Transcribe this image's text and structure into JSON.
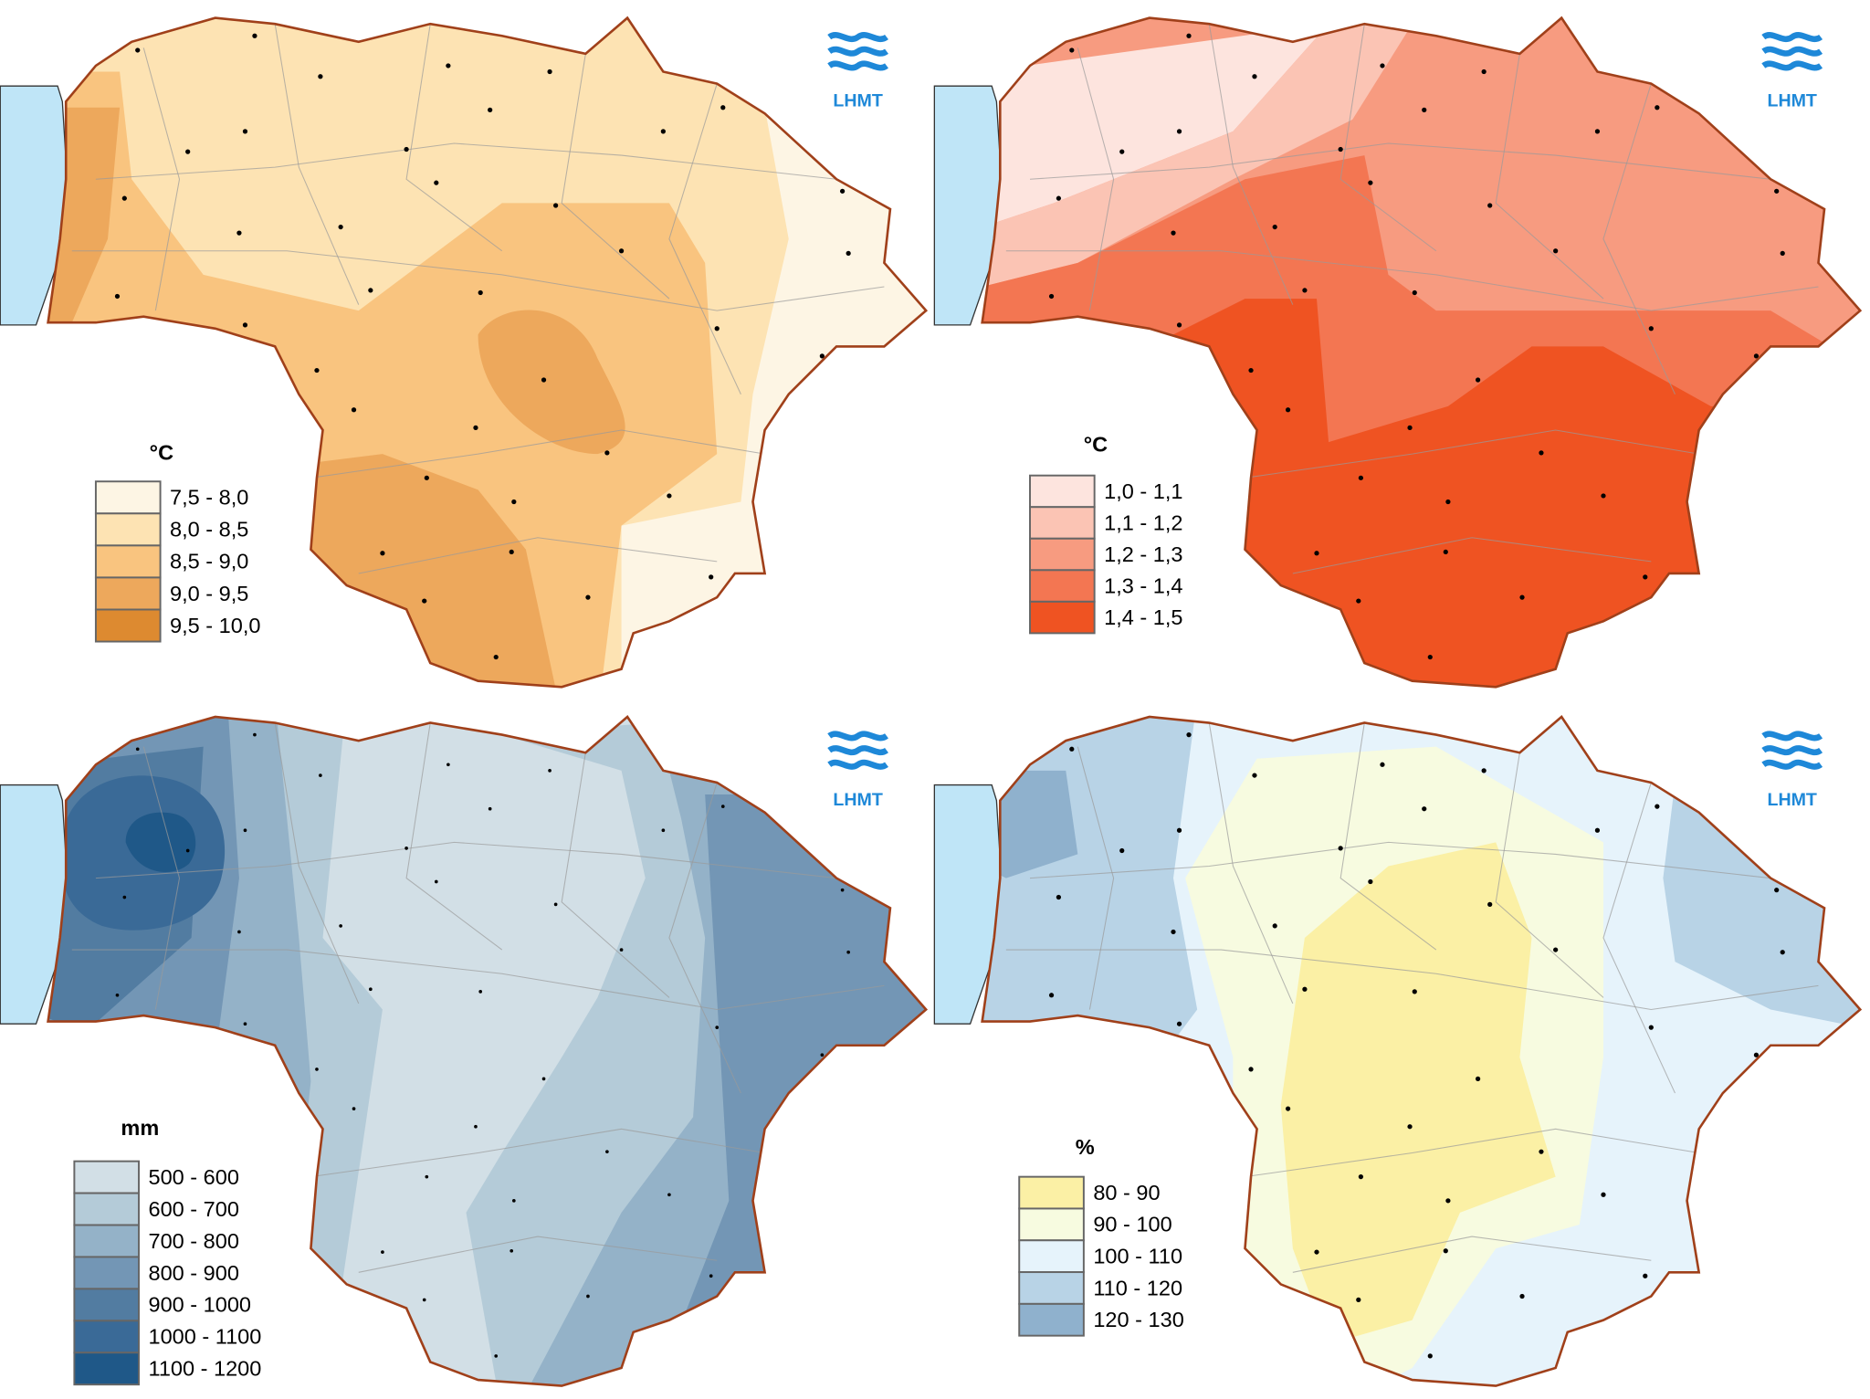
{
  "maps": [
    {
      "unit": "°C",
      "logo": "LHMT",
      "legend": [
        {
          "label": "7,5 - 8,0",
          "color": "#fdf5e4"
        },
        {
          "label": "8,0 - 8,5",
          "color": "#fde3b3"
        },
        {
          "label": "8,5 - 9,0",
          "color": "#f9c47f"
        },
        {
          "label": "9,0 - 9,5",
          "color": "#eda85c"
        },
        {
          "label": "9,5 - 10,0",
          "color": "#dd8a30"
        }
      ]
    },
    {
      "unit": "°C",
      "logo": "LHMT",
      "legend": [
        {
          "label": "1,0 - 1,1",
          "color": "#fde4de"
        },
        {
          "label": "1,1 - 1,2",
          "color": "#fbc4b4"
        },
        {
          "label": "1,2 - 1,3",
          "color": "#f79b80"
        },
        {
          "label": "1,3 - 1,4",
          "color": "#f37652"
        },
        {
          "label": "1,4 - 1,5",
          "color": "#ef5322"
        }
      ]
    },
    {
      "unit": "mm",
      "logo": "LHMT",
      "legend": [
        {
          "label": "500 - 600",
          "color": "#d2dfe6"
        },
        {
          "label": "600 - 700",
          "color": "#b4cbd8"
        },
        {
          "label": "700 - 800",
          "color": "#94b2c8"
        },
        {
          "label": "800 - 900",
          "color": "#7396b5"
        },
        {
          "label": "900 - 1000",
          "color": "#527ca1"
        },
        {
          "label": "1000 - 1100",
          "color": "#3a6a97"
        },
        {
          "label": "1100 - 1200",
          "color": "#1f5888"
        }
      ]
    },
    {
      "unit": "%",
      "logo": "LHMT",
      "legend": [
        {
          "label": "80 - 90",
          "color": "#fbf0a5"
        },
        {
          "label": "90 - 100",
          "color": "#f7fbe0"
        },
        {
          "label": "100 - 110",
          "color": "#e6f3fb"
        },
        {
          "label": "110 - 120",
          "color": "#b8d3e6"
        },
        {
          "label": "120 - 130",
          "color": "#8fb1cd"
        }
      ]
    }
  ]
}
